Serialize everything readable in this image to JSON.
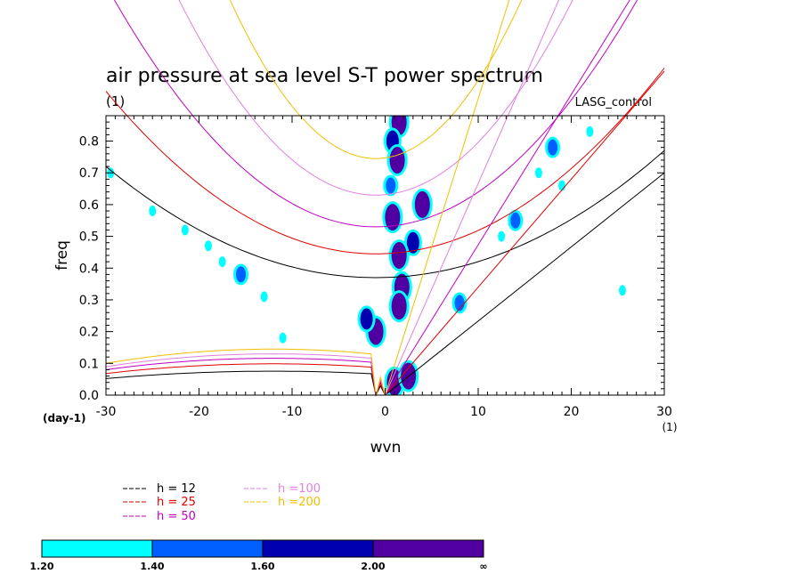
{
  "chart_data": {
    "type": "line",
    "title": "air pressure at sea level S-T power spectrum",
    "subtitle": "(1)",
    "dataset_label": "LASG_control",
    "xlabel": "wvn",
    "ylabel": "freq",
    "x_unit_label": "(1)",
    "y_unit_label": "(day-1)",
    "xlim": [
      -30,
      30
    ],
    "ylim": [
      0,
      0.88
    ],
    "x_ticks": [
      -30,
      -20,
      -10,
      0,
      10,
      20,
      30
    ],
    "x_tick_labels": [
      "-30",
      "-20",
      "-10",
      "0",
      "10",
      "20",
      "30"
    ],
    "y_ticks": [
      0,
      0.1,
      0.2,
      0.3,
      0.4,
      0.5,
      0.6,
      0.7,
      0.8
    ],
    "y_tick_labels": [
      "0.0",
      "0.1",
      "0.2",
      "0.3",
      "0.4",
      "0.5",
      "0.6",
      "0.7",
      "0.8"
    ],
    "legend": [
      {
        "label": "h = 12",
        "color": "#000000"
      },
      {
        "label": "h = 25",
        "color": "#e00000"
      },
      {
        "label": "h = 50",
        "color": "#c000c0"
      },
      {
        "label": "h =100",
        "color": "#e080e0"
      },
      {
        "label": "h =200",
        "color": "#f0c000"
      }
    ],
    "dispersion_curves": [
      {
        "h": 12,
        "color": "#000000",
        "kelvin_x": [
          0,
          30
        ],
        "kelvin_y": [
          0,
          0.7
        ],
        "wig_x_min": -30,
        "wig_y_min": 0.37,
        "wig_y_at_30": 0.77,
        "rossby_peak": 0.065
      },
      {
        "h": 25,
        "color": "#e00000",
        "kelvin_x": [
          0,
          30
        ],
        "kelvin_y": [
          0,
          1.02
        ],
        "wig_x_min": -30,
        "wig_y_min": 0.445,
        "wig_y_at_30": 1.03,
        "rossby_peak": 0.085
      },
      {
        "h": 50,
        "color": "#c000c0",
        "kelvin_x": [
          0,
          30
        ],
        "kelvin_y": [
          0,
          1.42
        ],
        "wig_x_min": -30,
        "wig_y_min": 0.53,
        "wig_y_at_30": 1.4,
        "rossby_peak": 0.1
      },
      {
        "h": 100,
        "color": "#e080e0",
        "kelvin_x": [
          0,
          30
        ],
        "kelvin_y": [
          0,
          2.0
        ],
        "wig_x_min": -30,
        "wig_y_min": 0.63,
        "wig_y_at_30": 1.95,
        "rossby_peak": 0.112
      },
      {
        "h": 200,
        "color": "#f0c000",
        "kelvin_x": [
          0,
          30
        ],
        "kelvin_y": [
          0,
          2.8
        ],
        "wig_x_min": -30,
        "wig_y_min": 0.745,
        "wig_y_at_30": 2.7,
        "rossby_peak": 0.125
      }
    ],
    "colorbar": {
      "colors": [
        "#00ffff",
        "#0060ff",
        "#0000b0",
        "#5000a0"
      ],
      "labels": [
        "1.20",
        "1.40",
        "1.60",
        "2.00",
        "∞"
      ]
    },
    "spectral_blobs": [
      {
        "x": 1.5,
        "y": 0.86,
        "level": 3
      },
      {
        "x": 0.8,
        "y": 0.8,
        "level": 2
      },
      {
        "x": 1.3,
        "y": 0.74,
        "level": 3
      },
      {
        "x": 0.6,
        "y": 0.66,
        "level": 1
      },
      {
        "x": 0.8,
        "y": 0.56,
        "level": 3
      },
      {
        "x": 4.0,
        "y": 0.6,
        "level": 3
      },
      {
        "x": 3.0,
        "y": 0.48,
        "level": 2
      },
      {
        "x": 1.5,
        "y": 0.44,
        "level": 3
      },
      {
        "x": 1.8,
        "y": 0.34,
        "level": 3
      },
      {
        "x": 1.5,
        "y": 0.28,
        "level": 3
      },
      {
        "x": 1.0,
        "y": 0.04,
        "level": 3
      },
      {
        "x": 2.5,
        "y": 0.06,
        "level": 3
      },
      {
        "x": -1.0,
        "y": 0.2,
        "level": 3
      },
      {
        "x": -2.0,
        "y": 0.24,
        "level": 2
      },
      {
        "x": 8.0,
        "y": 0.29,
        "level": 1
      },
      {
        "x": -29.5,
        "y": 0.7,
        "level": 0
      },
      {
        "x": -25.0,
        "y": 0.58,
        "level": 0
      },
      {
        "x": -21.5,
        "y": 0.52,
        "level": 0
      },
      {
        "x": -19.0,
        "y": 0.47,
        "level": 0
      },
      {
        "x": -17.5,
        "y": 0.42,
        "level": 0
      },
      {
        "x": -15.5,
        "y": 0.38,
        "level": 1
      },
      {
        "x": -13.0,
        "y": 0.31,
        "level": 0
      },
      {
        "x": -11.0,
        "y": 0.18,
        "level": 0
      },
      {
        "x": 14.0,
        "y": 0.55,
        "level": 1
      },
      {
        "x": 16.5,
        "y": 0.7,
        "level": 0
      },
      {
        "x": 18.0,
        "y": 0.78,
        "level": 1
      },
      {
        "x": 22.0,
        "y": 0.83,
        "level": 0
      },
      {
        "x": 25.5,
        "y": 0.33,
        "level": 0
      },
      {
        "x": 12.5,
        "y": 0.5,
        "level": 0
      },
      {
        "x": 19.0,
        "y": 0.66,
        "level": 0
      }
    ]
  }
}
